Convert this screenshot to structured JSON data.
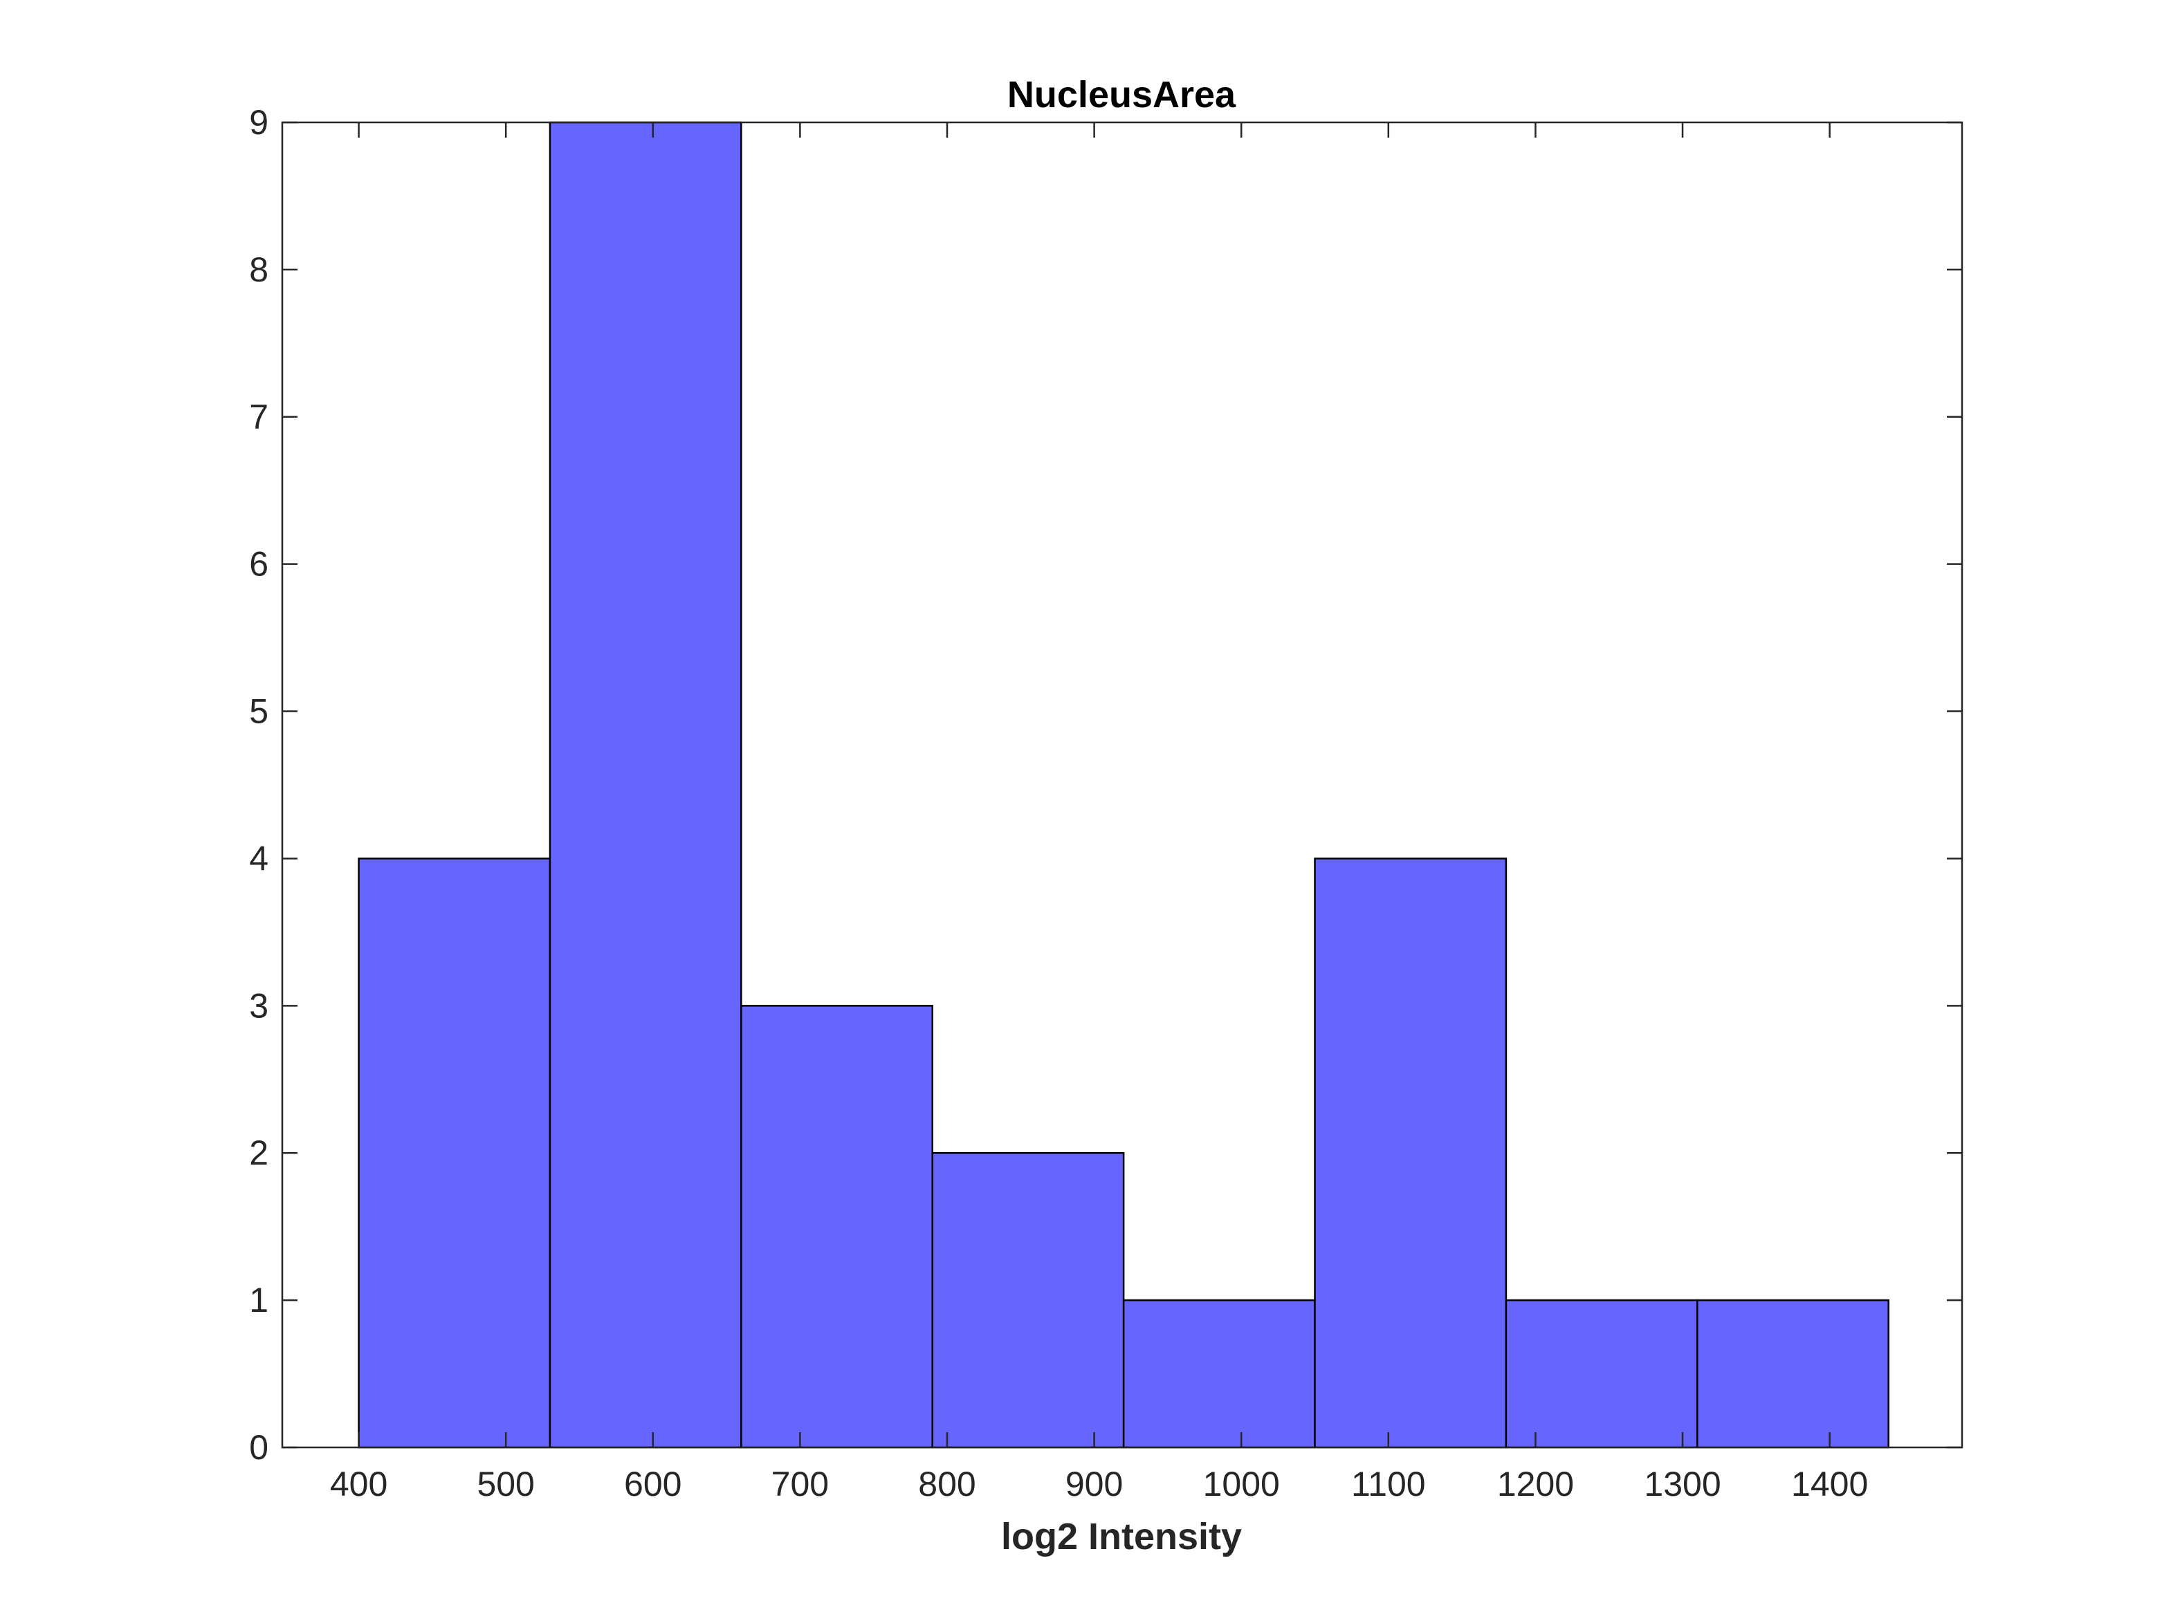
{
  "chart_data": {
    "type": "bar",
    "title": "NucleusArea",
    "xlabel": "log2 Intensity",
    "ylabel": "",
    "bin_edges": [
      400,
      530,
      660,
      790,
      920,
      1050,
      1180,
      1310,
      1440
    ],
    "values": [
      4,
      9,
      3,
      2,
      1,
      4,
      1,
      1
    ],
    "xlim": [
      348,
      1490
    ],
    "ylim": [
      0,
      9
    ],
    "xticks": [
      400,
      500,
      600,
      700,
      800,
      900,
      1000,
      1100,
      1200,
      1300,
      1400
    ],
    "yticks": [
      0,
      1,
      2,
      3,
      4,
      5,
      6,
      7,
      8,
      9
    ],
    "grid": false,
    "bar_color": "#6666ff",
    "edge_color": "#000000"
  }
}
